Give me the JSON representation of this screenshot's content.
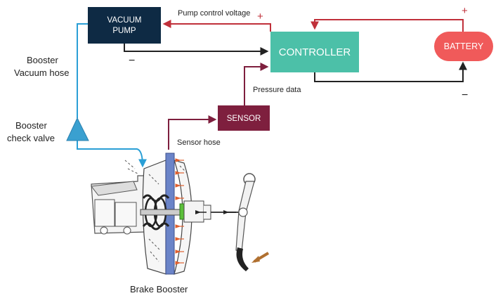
{
  "diagram": {
    "vacuum_pump": {
      "line1": "VACUUM",
      "line2": "PUMP"
    },
    "controller": "CONTROLLER",
    "battery": "BATTERY",
    "sensor": "SENSOR",
    "labels": {
      "pump_control_voltage": "Pump control voltage",
      "booster_vacuum_hose_1": "Booster",
      "booster_vacuum_hose_2": "Vacuum hose",
      "booster_check_valve_1": "Booster",
      "booster_check_valve_2": "check valve",
      "pressure_data": "Pressure data",
      "sensor_hose": "Sensor hose",
      "brake_booster": "Brake Booster"
    },
    "polarity": {
      "plus": "+",
      "minus": "−"
    },
    "colors": {
      "vacuum_pump": "#0e2a44",
      "controller": "#4cc0a8",
      "battery": "#f05a5a",
      "sensor": "#7e1f3e",
      "wire_positive": "#c0303a",
      "wire_negative": "#222222",
      "hose_blue": "#2a9fd6",
      "check_valve": "#3aa0d0",
      "sensor_wire": "#7e1f3e"
    }
  }
}
